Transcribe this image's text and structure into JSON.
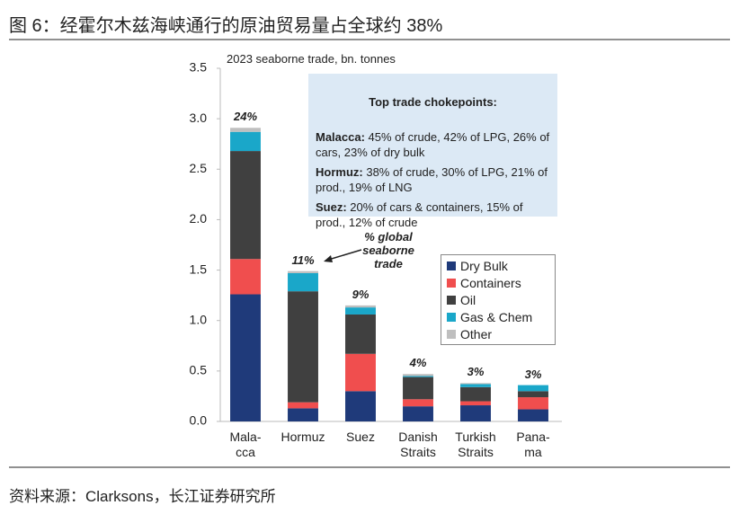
{
  "chart_data": {
    "type": "stacked_bar",
    "title": "图 6：经霍尔木兹海峡通行的原油贸易量占全球约 38%",
    "subtitle": "2023 seaborne trade, bn. tonnes",
    "source": "资料来源：Clarksons，长江证券研究所",
    "categories": [
      "Mala-\ncca",
      "Hormuz",
      "Suez",
      "Danish\nStraits",
      "Turkish\nStraits",
      "Pana-\nma"
    ],
    "series": [
      {
        "name": "Dry Bulk",
        "color": "#1f3a7a",
        "values": [
          1.26,
          0.13,
          0.3,
          0.15,
          0.16,
          0.12
        ]
      },
      {
        "name": "Containers",
        "color": "#f04e4e",
        "values": [
          0.35,
          0.06,
          0.37,
          0.07,
          0.04,
          0.12
        ]
      },
      {
        "name": "Oil",
        "color": "#404040",
        "values": [
          1.07,
          1.1,
          0.39,
          0.22,
          0.14,
          0.06
        ]
      },
      {
        "name": "Gas & Chem",
        "color": "#1aa7c9",
        "values": [
          0.19,
          0.18,
          0.07,
          0.01,
          0.03,
          0.06
        ]
      },
      {
        "name": "Other",
        "color": "#bfbfbf",
        "values": [
          0.04,
          0.02,
          0.02,
          0.02,
          0.01,
          0
        ]
      }
    ],
    "top_labels": [
      "24%",
      "11%",
      "9%",
      "4%",
      "3%",
      "3%"
    ],
    "annotation": "% global\nseaborne\ntrade",
    "info_box": {
      "title": "Top trade chokepoints:",
      "items": [
        {
          "label": "Malacca:",
          "text": "45% of crude, 42% of LPG, 26% of cars, 23% of dry bulk"
        },
        {
          "label": "Hormuz:",
          "text": "38% of crude, 30% of LPG, 21% of prod., 19% of LNG"
        },
        {
          "label": "Suez:",
          "text": "20% of cars & containers, 15% of prod., 12% of crude"
        }
      ]
    },
    "ylim": [
      0,
      3.5
    ],
    "yticks": [
      {
        "value": 0,
        "label": "0.0"
      },
      {
        "value": 0.5,
        "label": "0.5"
      },
      {
        "value": 1,
        "label": "1.0"
      },
      {
        "value": 1.5,
        "label": "1.5"
      },
      {
        "value": 2,
        "label": "2.0"
      },
      {
        "value": 2.5,
        "label": "2.5"
      },
      {
        "value": 3,
        "label": "3.0"
      },
      {
        "value": 3.5,
        "label": "3.5"
      }
    ],
    "legend": "right"
  }
}
